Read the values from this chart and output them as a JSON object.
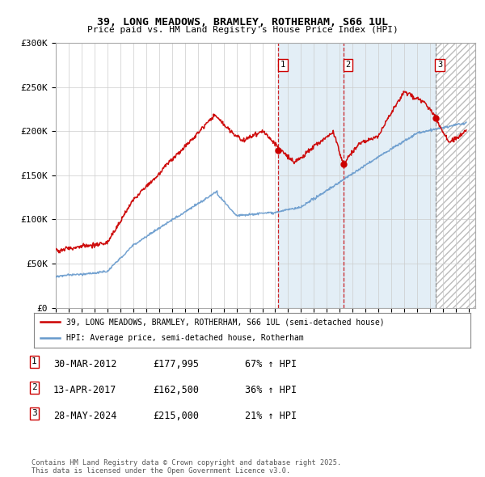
{
  "title": "39, LONG MEADOWS, BRAMLEY, ROTHERHAM, S66 1UL",
  "subtitle": "Price paid vs. HM Land Registry's House Price Index (HPI)",
  "ylabel_ticks": [
    "£0",
    "£50K",
    "£100K",
    "£150K",
    "£200K",
    "£250K",
    "£300K"
  ],
  "ylim": [
    0,
    300000
  ],
  "xlim_start": 1995.0,
  "xlim_end": 2027.5,
  "sale_dates": [
    2012.247,
    2017.278,
    2024.413
  ],
  "sale_prices": [
    177995,
    162500,
    215000
  ],
  "sale_labels": [
    "1",
    "2",
    "3"
  ],
  "legend_line1": "39, LONG MEADOWS, BRAMLEY, ROTHERHAM, S66 1UL (semi-detached house)",
  "legend_line2": "HPI: Average price, semi-detached house, Rotherham",
  "table_rows": [
    [
      "1",
      "30-MAR-2012",
      "£177,995",
      "67% ↑ HPI"
    ],
    [
      "2",
      "13-APR-2017",
      "£162,500",
      "36% ↑ HPI"
    ],
    [
      "3",
      "28-MAY-2024",
      "£215,000",
      "21% ↑ HPI"
    ]
  ],
  "footnote": "Contains HM Land Registry data © Crown copyright and database right 2025.\nThis data is licensed under the Open Government Licence v3.0.",
  "red_color": "#cc0000",
  "blue_color": "#6699cc",
  "bg_color": "#ffffff",
  "grid_color": "#cccccc",
  "shade_color": "#cce0f0",
  "hatch_color": "#cccccc"
}
